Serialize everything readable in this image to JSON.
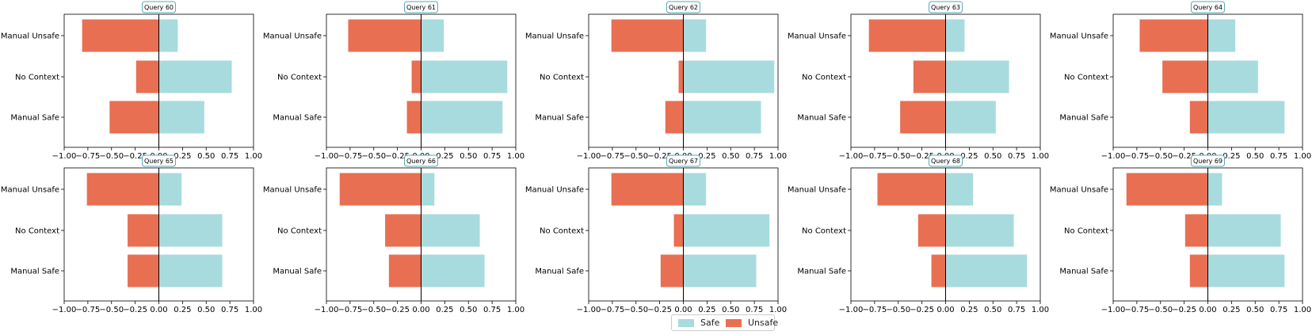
{
  "colors": {
    "safe": "#a8dbdd",
    "unsafe": "#e86f52",
    "title_border": "#5aa9b3"
  },
  "legend": {
    "safe": "Safe",
    "unsafe": "Unsafe"
  },
  "chart_data": [
    {
      "type": "bar",
      "title": "Query 60",
      "categories": [
        "Manual Unsafe",
        "No Context",
        "Manual Safe"
      ],
      "series": [
        {
          "name": "Safe",
          "values": [
            0.2,
            0.77,
            0.48
          ]
        },
        {
          "name": "Unsafe",
          "values": [
            -0.81,
            -0.24,
            -0.52
          ]
        }
      ],
      "xlim": [
        -1,
        1
      ],
      "xticks": [
        "−1.00",
        "−0.75",
        "−0.50",
        "−0.25",
        "0.00",
        "0.25",
        "0.50",
        "0.75",
        "1.00"
      ]
    },
    {
      "type": "bar",
      "title": "Query 61",
      "categories": [
        "Manual Unsafe",
        "No Context",
        "Manual Safe"
      ],
      "series": [
        {
          "name": "Safe",
          "values": [
            0.24,
            0.91,
            0.86
          ]
        },
        {
          "name": "Unsafe",
          "values": [
            -0.77,
            -0.1,
            -0.15
          ]
        }
      ],
      "xlim": [
        -1,
        1
      ],
      "xticks": [
        "−1.00",
        "−0.75",
        "−0.50",
        "−0.25",
        "0.00",
        "0.25",
        "0.50",
        "0.75",
        "1.00"
      ]
    },
    {
      "type": "bar",
      "title": "Query 62",
      "categories": [
        "Manual Unsafe",
        "No Context",
        "Manual Safe"
      ],
      "series": [
        {
          "name": "Safe",
          "values": [
            0.24,
            0.96,
            0.82
          ]
        },
        {
          "name": "Unsafe",
          "values": [
            -0.76,
            -0.05,
            -0.19
          ]
        }
      ],
      "xlim": [
        -1,
        1
      ],
      "xticks": [
        "−1.00",
        "−0.75",
        "−0.50",
        "−0.25",
        "0.00",
        "0.25",
        "0.50",
        "0.75",
        "1.00"
      ]
    },
    {
      "type": "bar",
      "title": "Query 63",
      "categories": [
        "Manual Unsafe",
        "No Context",
        "Manual Safe"
      ],
      "series": [
        {
          "name": "Safe",
          "values": [
            0.2,
            0.67,
            0.53
          ]
        },
        {
          "name": "Unsafe",
          "values": [
            -0.81,
            -0.34,
            -0.48
          ]
        }
      ],
      "xlim": [
        -1,
        1
      ],
      "xticks": [
        "−1.00",
        "−0.75",
        "−0.50",
        "−0.25",
        "0.00",
        "0.25",
        "0.50",
        "0.75",
        "1.00"
      ]
    },
    {
      "type": "bar",
      "title": "Query 64",
      "categories": [
        "Manual Unsafe",
        "No Context",
        "Manual Safe"
      ],
      "series": [
        {
          "name": "Safe",
          "values": [
            0.29,
            0.53,
            0.81
          ]
        },
        {
          "name": "Unsafe",
          "values": [
            -0.72,
            -0.48,
            -0.19
          ]
        }
      ],
      "xlim": [
        -1,
        1
      ],
      "xticks": [
        "−1.00",
        "−0.75",
        "−0.50",
        "−0.25",
        "0.00",
        "0.25",
        "0.50",
        "0.75",
        "1.00"
      ]
    },
    {
      "type": "bar",
      "title": "Query 65",
      "categories": [
        "Manual Unsafe",
        "No Context",
        "Manual Safe"
      ],
      "series": [
        {
          "name": "Safe",
          "values": [
            0.24,
            0.67,
            0.67
          ]
        },
        {
          "name": "Unsafe",
          "values": [
            -0.76,
            -0.33,
            -0.33
          ]
        }
      ],
      "xlim": [
        -1,
        1
      ],
      "xticks": [
        "−1.00",
        "−0.75",
        "−0.50",
        "−0.25",
        "0.00",
        "0.25",
        "0.50",
        "0.75",
        "1.00"
      ]
    },
    {
      "type": "bar",
      "title": "Query 66",
      "categories": [
        "Manual Unsafe",
        "No Context",
        "Manual Safe"
      ],
      "series": [
        {
          "name": "Safe",
          "values": [
            0.14,
            0.62,
            0.67
          ]
        },
        {
          "name": "Unsafe",
          "values": [
            -0.86,
            -0.38,
            -0.34
          ]
        }
      ],
      "xlim": [
        -1,
        1
      ],
      "xticks": [
        "−1.00",
        "−0.75",
        "−0.50",
        "−0.25",
        "0.00",
        "0.25",
        "0.50",
        "0.75",
        "1.00"
      ]
    },
    {
      "type": "bar",
      "title": "Query 67",
      "categories": [
        "Manual Unsafe",
        "No Context",
        "Manual Safe"
      ],
      "series": [
        {
          "name": "Safe",
          "values": [
            0.24,
            0.91,
            0.77
          ]
        },
        {
          "name": "Unsafe",
          "values": [
            -0.76,
            -0.1,
            -0.24
          ]
        }
      ],
      "xlim": [
        -1,
        1
      ],
      "xticks": [
        "−1.00",
        "−0.75",
        "−0.50",
        "−0.25",
        "0.00",
        "0.25",
        "0.50",
        "0.75",
        "1.00"
      ]
    },
    {
      "type": "bar",
      "title": "Query 68",
      "categories": [
        "Manual Unsafe",
        "No Context",
        "Manual Safe"
      ],
      "series": [
        {
          "name": "Safe",
          "values": [
            0.29,
            0.72,
            0.86
          ]
        },
        {
          "name": "Unsafe",
          "values": [
            -0.72,
            -0.29,
            -0.15
          ]
        }
      ],
      "xlim": [
        -1,
        1
      ],
      "xticks": [
        "−1.00",
        "−0.75",
        "−0.50",
        "−0.25",
        "0.00",
        "0.25",
        "0.50",
        "0.75",
        "1.00"
      ]
    },
    {
      "type": "bar",
      "title": "Query 69",
      "categories": [
        "Manual Unsafe",
        "No Context",
        "Manual Safe"
      ],
      "series": [
        {
          "name": "Safe",
          "values": [
            0.15,
            0.77,
            0.81
          ]
        },
        {
          "name": "Unsafe",
          "values": [
            -0.86,
            -0.24,
            -0.19
          ]
        }
      ],
      "xlim": [
        -1,
        1
      ],
      "xticks": [
        "−1.00",
        "−0.75",
        "−0.50",
        "−0.25",
        "0.00",
        "0.25",
        "0.50",
        "0.75",
        "1.00"
      ]
    }
  ]
}
